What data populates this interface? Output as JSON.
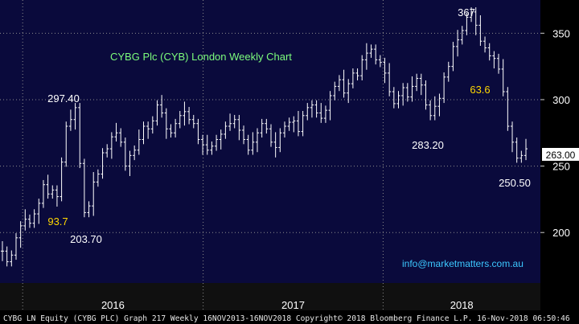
{
  "chart_data": {
    "type": "bar",
    "title": "CYBG Plc (CYB) London Weekly Chart",
    "y_ticks": [
      200,
      250,
      300,
      350
    ],
    "ylim": [
      162,
      375
    ],
    "x_year_labels": [
      {
        "label": "2016",
        "year_start": 2016
      },
      {
        "label": "2017",
        "year_start": 2017
      },
      {
        "label": "2018",
        "year_start": 2018
      }
    ],
    "x_range": [
      "2015-11-16",
      "2018-11-16"
    ],
    "last_price_label": "263.00",
    "annotations": [
      {
        "text": "367",
        "value": 367,
        "color": "#ffffff"
      },
      {
        "text": "297.40",
        "value": 297.4,
        "color": "#ffffff"
      },
      {
        "text": "283.20",
        "value": 283.2,
        "color": "#ffffff"
      },
      {
        "text": "250.50",
        "value": 250.5,
        "color": "#ffffff"
      },
      {
        "text": "203.70",
        "value": 203.7,
        "color": "#ffffff"
      },
      {
        "text": "93.7",
        "value": 93.7,
        "color": "#ffd700"
      },
      {
        "text": "63.6",
        "value": 63.6,
        "color": "#ffd700"
      }
    ],
    "website": "info@marketmatters.com.au",
    "close_series": [
      186,
      178,
      183,
      196,
      205,
      210,
      207,
      214,
      222,
      236,
      229,
      232,
      227,
      253,
      280,
      285,
      294,
      252,
      215,
      220,
      238,
      244,
      260,
      263,
      272,
      275,
      268,
      250,
      258,
      262,
      270,
      280,
      278,
      284,
      296,
      290,
      278,
      275,
      282,
      288,
      291,
      285,
      282,
      270,
      266,
      262,
      265,
      270,
      274,
      280,
      282,
      285,
      277,
      270,
      262,
      268,
      275,
      282,
      278,
      268,
      264,
      275,
      280,
      283,
      284,
      276,
      288,
      294,
      296,
      290,
      286,
      292,
      303,
      310,
      315,
      305,
      312,
      320,
      318,
      330,
      335,
      338,
      330,
      328,
      320,
      306,
      297,
      303,
      309,
      302,
      310,
      316,
      311,
      296,
      288,
      295,
      301,
      317,
      325,
      340,
      345,
      352,
      362,
      366,
      356,
      344,
      339,
      333,
      331,
      323,
      306,
      280,
      268,
      256,
      258,
      263
    ],
    "colors": {
      "background": "#000000",
      "plot_bg": "#0a0a3c",
      "grid": "#8c8c8c",
      "bars": "#ffffff",
      "title": "#7cfc7c",
      "website": "#3cc8ff",
      "highlight": "#ffd700",
      "price_box": "#ffffff"
    }
  },
  "footer": {
    "text": "CYBG LN Equity (CYBG PLC) Graph 217  Weekly 16NOV2013-16NOV2018  Copyright© 2018 Bloomberg Finance L.P.    16-Nov-2018 06:50:46"
  }
}
